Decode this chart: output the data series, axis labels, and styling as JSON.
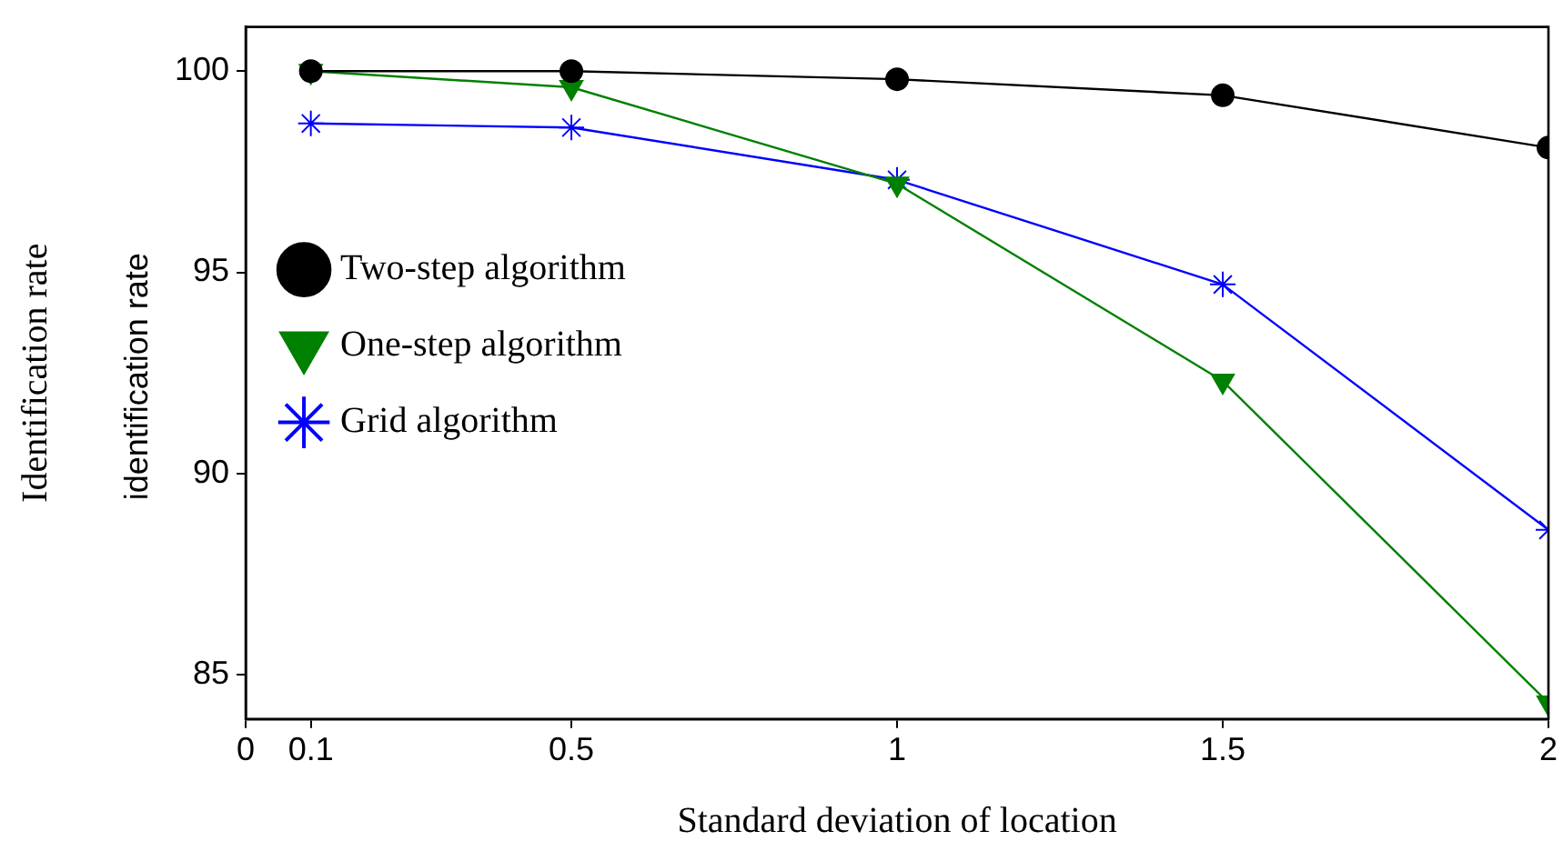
{
  "chart_data": {
    "type": "line",
    "xlabel": "Standard deviation of location",
    "ylabel": "Identification rate",
    "annotations": [
      "identification rate"
    ],
    "x": [
      0.1,
      0.5,
      1,
      1.5,
      2
    ],
    "series": [
      {
        "name": "Two-step algorithm",
        "color": "#000000",
        "marker": "circle",
        "values": [
          100,
          100,
          99.8,
          99.4,
          98.1
        ]
      },
      {
        "name": "One-step algorithm",
        "color": "#008000",
        "marker": "triangle",
        "values": [
          100,
          99.6,
          97.2,
          92.3,
          84.3
        ]
      },
      {
        "name": "Grid algorithm",
        "color": "#0000ff",
        "marker": "cross",
        "values": [
          98.7,
          98.6,
          97.3,
          94.7,
          88.6
        ]
      }
    ],
    "xlim": [
      0,
      2
    ],
    "xticks": [
      0,
      0.1,
      0.5,
      1,
      1.5,
      2
    ],
    "ylim": [
      83.9,
      101.1
    ],
    "yticks": [
      85,
      90,
      95,
      100
    ],
    "grid": false,
    "legend": "left",
    "line_style": "solid"
  }
}
